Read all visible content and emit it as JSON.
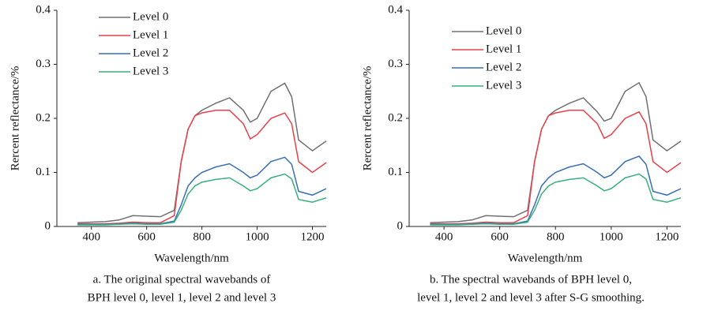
{
  "chart_data": [
    {
      "type": "line",
      "caption": [
        "a. The original spectral wavebands of",
        "BPH level 0, level 1, level 2 and level 3"
      ],
      "x_label": "Wavelength/nm",
      "y_label": "Rercent reflectance/%",
      "x": [
        350,
        400,
        450,
        500,
        550,
        600,
        650,
        700,
        725,
        750,
        775,
        800,
        850,
        900,
        950,
        975,
        1000,
        1050,
        1100,
        1125,
        1150,
        1200,
        1250
      ],
      "series": [
        {
          "name": "Level 0",
          "color": "#707070",
          "values": [
            0.007,
            0.008,
            0.009,
            0.012,
            0.02,
            0.019,
            0.018,
            0.03,
            0.12,
            0.18,
            0.205,
            0.215,
            0.228,
            0.238,
            0.215,
            0.193,
            0.2,
            0.25,
            0.265,
            0.24,
            0.16,
            0.14,
            0.158
          ]
        },
        {
          "name": "Level 1",
          "color": "#e8414a",
          "values": [
            0.005,
            0.005,
            0.005,
            0.006,
            0.008,
            0.007,
            0.007,
            0.02,
            0.12,
            0.18,
            0.205,
            0.21,
            0.215,
            0.215,
            0.19,
            0.162,
            0.17,
            0.2,
            0.21,
            0.19,
            0.12,
            0.1,
            0.118
          ]
        },
        {
          "name": "Level 2",
          "color": "#3a6fb5",
          "values": [
            0.004,
            0.004,
            0.004,
            0.005,
            0.006,
            0.005,
            0.005,
            0.01,
            0.04,
            0.075,
            0.09,
            0.1,
            0.11,
            0.116,
            0.1,
            0.09,
            0.095,
            0.12,
            0.128,
            0.115,
            0.065,
            0.058,
            0.07
          ]
        },
        {
          "name": "Level 3",
          "color": "#3aaf7e",
          "values": [
            0.003,
            0.003,
            0.003,
            0.004,
            0.005,
            0.004,
            0.004,
            0.008,
            0.03,
            0.06,
            0.075,
            0.082,
            0.087,
            0.09,
            0.075,
            0.066,
            0.07,
            0.09,
            0.097,
            0.088,
            0.05,
            0.045,
            0.053
          ]
        }
      ],
      "xlim": [
        275,
        1250
      ],
      "xticks": [
        400,
        600,
        800,
        1000,
        1200
      ],
      "ylim": [
        0,
        0.4
      ],
      "yticks": [
        0,
        0.1,
        0.2,
        0.3,
        0.4
      ]
    },
    {
      "type": "line",
      "caption": [
        "b. The spectral wavebands of BPH level 0,",
        "level 1, level 2 and level 3 after S-G smoothing."
      ],
      "x_label": "Wavelength/nm",
      "y_label": "Rercent reflectance/%",
      "x": [
        350,
        400,
        450,
        500,
        550,
        600,
        650,
        700,
        725,
        750,
        775,
        800,
        850,
        900,
        950,
        975,
        1000,
        1050,
        1100,
        1125,
        1150,
        1200,
        1250
      ],
      "series": [
        {
          "name": "Level 0",
          "color": "#707070",
          "values": [
            0.007,
            0.008,
            0.009,
            0.012,
            0.02,
            0.019,
            0.018,
            0.03,
            0.12,
            0.18,
            0.205,
            0.215,
            0.228,
            0.238,
            0.212,
            0.195,
            0.2,
            0.25,
            0.266,
            0.24,
            0.16,
            0.14,
            0.158
          ]
        },
        {
          "name": "Level 1",
          "color": "#e8414a",
          "values": [
            0.005,
            0.005,
            0.005,
            0.006,
            0.008,
            0.007,
            0.007,
            0.02,
            0.12,
            0.18,
            0.205,
            0.21,
            0.215,
            0.215,
            0.19,
            0.163,
            0.17,
            0.2,
            0.212,
            0.19,
            0.12,
            0.1,
            0.118
          ]
        },
        {
          "name": "Level 2",
          "color": "#3a6fb5",
          "values": [
            0.004,
            0.004,
            0.004,
            0.005,
            0.006,
            0.005,
            0.005,
            0.01,
            0.04,
            0.075,
            0.09,
            0.1,
            0.11,
            0.116,
            0.1,
            0.09,
            0.095,
            0.12,
            0.13,
            0.115,
            0.065,
            0.058,
            0.07
          ]
        },
        {
          "name": "Level 3",
          "color": "#3aaf7e",
          "values": [
            0.003,
            0.003,
            0.003,
            0.004,
            0.005,
            0.004,
            0.004,
            0.008,
            0.03,
            0.06,
            0.075,
            0.082,
            0.087,
            0.09,
            0.075,
            0.066,
            0.07,
            0.09,
            0.097,
            0.088,
            0.05,
            0.045,
            0.053
          ]
        }
      ],
      "xlim": [
        275,
        1250
      ],
      "xticks": [
        400,
        600,
        800,
        1000,
        1200
      ],
      "ylim": [
        0,
        0.4
      ],
      "yticks": [
        0,
        0.1,
        0.2,
        0.3,
        0.4
      ]
    }
  ]
}
